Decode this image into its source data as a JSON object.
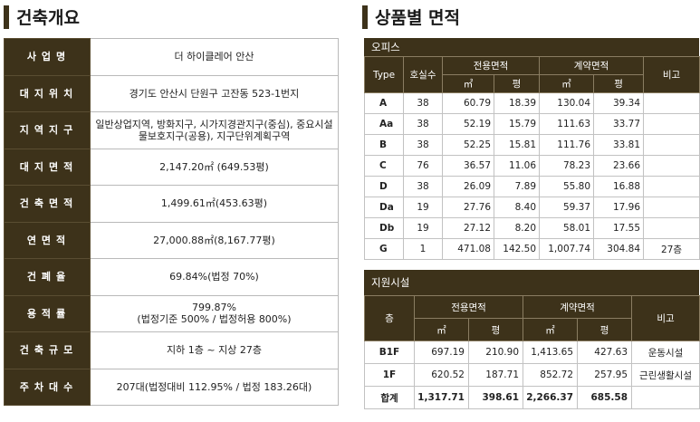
{
  "overview": {
    "title": "건축개요",
    "rows": [
      {
        "label": "사업명",
        "value": "더 하이클레어 안산"
      },
      {
        "label": "대지위치",
        "value": "경기도 안산시 단원구 고잔동 523-1번지"
      },
      {
        "label": "지역지구",
        "value": "일반상업지역, 방화지구, 시가지경관지구(중심), 중요시설물보호지구(공용), 지구단위계획구역"
      },
      {
        "label": "대지면적",
        "value": "2,147.20㎡ (649.53평)"
      },
      {
        "label": "건축면적",
        "value": "1,499.61㎡(453.63평)"
      },
      {
        "label": "연면적",
        "value": "27,000.88㎡(8,167.77평)"
      },
      {
        "label": "건폐율",
        "value": "69.84%(법정 70%)"
      },
      {
        "label": "용적률",
        "value": "799.87%\n(법정기준 500% / 법정허용 800%)"
      },
      {
        "label": "건축규모",
        "value": "지하 1층 ~ 지상 27층"
      },
      {
        "label": "주차대수",
        "value": "207대(법정대비 112.95% / 법정 183.26대)"
      }
    ]
  },
  "area": {
    "title": "상품별 면적",
    "office": {
      "caption": "오피스",
      "headers": {
        "type": "Type",
        "units": "호실수",
        "exclusive": "전용면적",
        "contract": "계약면적",
        "note": "비고",
        "sqm": "㎡",
        "pyeong": "평"
      },
      "rows": [
        {
          "type": "A",
          "units": "38",
          "ex_sqm": "60.79",
          "ex_py": "18.39",
          "ct_sqm": "130.04",
          "ct_py": "39.34",
          "note": ""
        },
        {
          "type": "Aa",
          "units": "38",
          "ex_sqm": "52.19",
          "ex_py": "15.79",
          "ct_sqm": "111.63",
          "ct_py": "33.77",
          "note": ""
        },
        {
          "type": "B",
          "units": "38",
          "ex_sqm": "52.25",
          "ex_py": "15.81",
          "ct_sqm": "111.76",
          "ct_py": "33.81",
          "note": ""
        },
        {
          "type": "C",
          "units": "76",
          "ex_sqm": "36.57",
          "ex_py": "11.06",
          "ct_sqm": "78.23",
          "ct_py": "23.66",
          "note": ""
        },
        {
          "type": "D",
          "units": "38",
          "ex_sqm": "26.09",
          "ex_py": "7.89",
          "ct_sqm": "55.80",
          "ct_py": "16.88",
          "note": ""
        },
        {
          "type": "Da",
          "units": "19",
          "ex_sqm": "27.76",
          "ex_py": "8.40",
          "ct_sqm": "59.37",
          "ct_py": "17.96",
          "note": ""
        },
        {
          "type": "Db",
          "units": "19",
          "ex_sqm": "27.12",
          "ex_py": "8.20",
          "ct_sqm": "58.01",
          "ct_py": "17.55",
          "note": ""
        },
        {
          "type": "G",
          "units": "1",
          "ex_sqm": "471.08",
          "ex_py": "142.50",
          "ct_sqm": "1,007.74",
          "ct_py": "304.84",
          "note": "27층"
        }
      ]
    },
    "support": {
      "caption": "지원시설",
      "headers": {
        "floor": "층",
        "exclusive": "전용면적",
        "contract": "계약면적",
        "note": "비고",
        "sqm": "㎡",
        "pyeong": "평"
      },
      "rows": [
        {
          "floor": "B1F",
          "ex_sqm": "697.19",
          "ex_py": "210.90",
          "ct_sqm": "1,413.65",
          "ct_py": "427.63",
          "note": "운동시설"
        },
        {
          "floor": "1F",
          "ex_sqm": "620.52",
          "ex_py": "187.71",
          "ct_sqm": "852.72",
          "ct_py": "257.95",
          "note": "근린생활시설"
        }
      ],
      "total": {
        "floor": "합계",
        "ex_sqm": "1,317.71",
        "ex_py": "398.61",
        "ct_sqm": "2,266.37",
        "ct_py": "685.58",
        "note": ""
      }
    }
  }
}
